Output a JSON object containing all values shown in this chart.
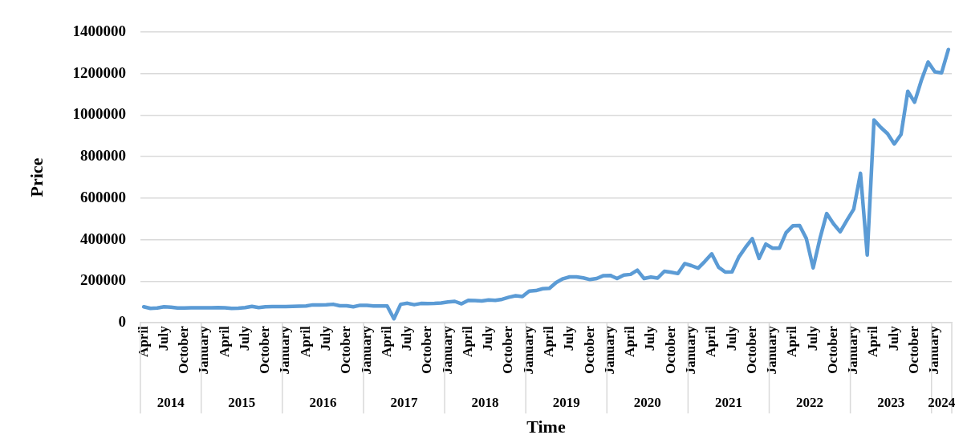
{
  "chart_data": {
    "type": "line",
    "xlabel": "Time",
    "ylabel": "Price",
    "x": [
      "2014-04",
      "2014-05",
      "2014-06",
      "2014-07",
      "2014-08",
      "2014-09",
      "2014-10",
      "2014-11",
      "2014-12",
      "2015-01",
      "2015-02",
      "2015-03",
      "2015-04",
      "2015-05",
      "2015-06",
      "2015-07",
      "2015-08",
      "2015-09",
      "2015-10",
      "2015-11",
      "2015-12",
      "2016-01",
      "2016-02",
      "2016-03",
      "2016-04",
      "2016-05",
      "2016-06",
      "2016-07",
      "2016-08",
      "2016-09",
      "2016-10",
      "2016-11",
      "2016-12",
      "2017-01",
      "2017-02",
      "2017-03",
      "2017-04",
      "2017-05",
      "2017-06",
      "2017-07",
      "2017-08",
      "2017-09",
      "2017-10",
      "2017-11",
      "2017-12",
      "2018-01",
      "2018-02",
      "2018-03",
      "2018-04",
      "2018-05",
      "2018-06",
      "2018-07",
      "2018-08",
      "2018-09",
      "2018-10",
      "2018-11",
      "2018-12",
      "2019-01",
      "2019-02",
      "2019-03",
      "2019-04",
      "2019-05",
      "2019-06",
      "2019-07",
      "2019-08",
      "2019-09",
      "2019-10",
      "2019-11",
      "2019-12",
      "2020-01",
      "2020-02",
      "2020-03",
      "2020-04",
      "2020-05",
      "2020-06",
      "2020-07",
      "2020-08",
      "2020-09",
      "2020-10",
      "2020-11",
      "2020-12",
      "2021-01",
      "2021-02",
      "2021-03",
      "2021-04",
      "2021-05",
      "2021-06",
      "2021-07",
      "2021-08",
      "2021-09",
      "2021-10",
      "2021-11",
      "2021-12",
      "2022-01",
      "2022-02",
      "2022-03",
      "2022-04",
      "2022-05",
      "2022-06",
      "2022-07",
      "2022-08",
      "2022-09",
      "2022-10",
      "2022-11",
      "2022-12",
      "2023-01",
      "2023-02",
      "2023-03",
      "2023-04",
      "2023-05",
      "2023-06",
      "2023-07",
      "2023-08",
      "2023-09",
      "2023-10",
      "2023-11",
      "2023-12",
      "2024-01",
      "2024-02",
      "2024-03"
    ],
    "series": [
      {
        "color": "#5b9bd5",
        "values": [
          77000,
          69000,
          71000,
          77000,
          75000,
          71000,
          71000,
          72000,
          72000,
          72000,
          72000,
          73000,
          72000,
          69000,
          70000,
          73000,
          79000,
          73000,
          77000,
          78000,
          78000,
          78000,
          79000,
          80000,
          81000,
          86000,
          86000,
          87000,
          89000,
          82000,
          82000,
          77000,
          84000,
          84000,
          81000,
          81000,
          81000,
          19000,
          89000,
          94000,
          87000,
          93000,
          92000,
          93000,
          95000,
          100000,
          103000,
          91000,
          108000,
          107000,
          105000,
          110000,
          108000,
          113000,
          123000,
          130000,
          126000,
          152000,
          155000,
          164000,
          166000,
          194000,
          212000,
          221000,
          221000,
          216000,
          208000,
          213000,
          227000,
          228000,
          213000,
          230000,
          233000,
          253000,
          213000,
          220000,
          215000,
          248000,
          243000,
          237000,
          285000,
          275000,
          263000,
          296000,
          332000,
          268000,
          244000,
          245000,
          316000,
          363000,
          405000,
          310000,
          379000,
          359000,
          359000,
          434000,
          467000,
          468000,
          405000,
          264000,
          405000,
          526000,
          477000,
          438000,
          494000,
          547000,
          720000,
          326000,
          977000,
          941000,
          911000,
          861000,
          907000,
          1115000,
          1062000,
          1167000,
          1256000,
          1209000,
          1204000,
          1316000
        ]
      }
    ],
    "xlim": [
      "2014-03-16",
      "2024-03-16"
    ],
    "xticks": [
      {
        "value": "2014-04",
        "label": "April"
      },
      {
        "value": "2014-07",
        "label": "July"
      },
      {
        "value": "2014-10",
        "label": "October"
      },
      {
        "value": "2015-01",
        "label": "January"
      },
      {
        "value": "2015-04",
        "label": "April"
      },
      {
        "value": "2015-07",
        "label": "July"
      },
      {
        "value": "2015-10",
        "label": "October"
      },
      {
        "value": "2016-01",
        "label": "January"
      },
      {
        "value": "2016-04",
        "label": "April"
      },
      {
        "value": "2016-07",
        "label": "July"
      },
      {
        "value": "2016-10",
        "label": "October"
      },
      {
        "value": "2017-01",
        "label": "January"
      },
      {
        "value": "2017-04",
        "label": "April"
      },
      {
        "value": "2017-07",
        "label": "July"
      },
      {
        "value": "2017-10",
        "label": "October"
      },
      {
        "value": "2018-01",
        "label": "January"
      },
      {
        "value": "2018-04",
        "label": "April"
      },
      {
        "value": "2018-07",
        "label": "July"
      },
      {
        "value": "2018-10",
        "label": "October"
      },
      {
        "value": "2019-01",
        "label": "January"
      },
      {
        "value": "2019-04",
        "label": "April"
      },
      {
        "value": "2019-07",
        "label": "July"
      },
      {
        "value": "2019-10",
        "label": "October"
      },
      {
        "value": "2020-01",
        "label": "January"
      },
      {
        "value": "2020-04",
        "label": "April"
      },
      {
        "value": "2020-07",
        "label": "July"
      },
      {
        "value": "2020-10",
        "label": "October"
      },
      {
        "value": "2021-01",
        "label": "January"
      },
      {
        "value": "2021-04",
        "label": "April"
      },
      {
        "value": "2021-07",
        "label": "July"
      },
      {
        "value": "2021-10",
        "label": "October"
      },
      {
        "value": "2022-01",
        "label": "January"
      },
      {
        "value": "2022-04",
        "label": "April"
      },
      {
        "value": "2022-07",
        "label": "July"
      },
      {
        "value": "2022-10",
        "label": "October"
      },
      {
        "value": "2023-01",
        "label": "January"
      },
      {
        "value": "2023-04",
        "label": "April"
      },
      {
        "value": "2023-07",
        "label": "July"
      },
      {
        "value": "2023-10",
        "label": "October"
      },
      {
        "value": "2024-01",
        "label": "January"
      }
    ],
    "ylim": [
      0,
      1400000
    ],
    "yticks": [
      0,
      200000,
      400000,
      600000,
      800000,
      1000000,
      1200000,
      1400000
    ],
    "grid": "y",
    "legend": false,
    "marker": "none",
    "line_style": "solid",
    "annotations": [
      "2014",
      "2015",
      "2016",
      "2017",
      "2018",
      "2019",
      "2020",
      "2021",
      "2022",
      "2023",
      "2024"
    ]
  }
}
